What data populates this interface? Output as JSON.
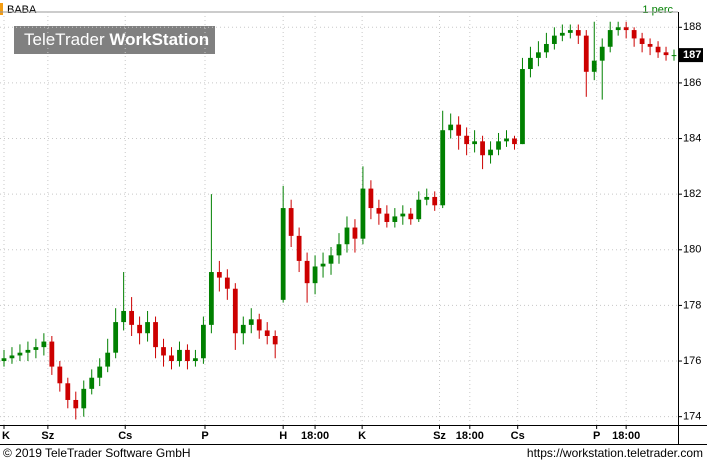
{
  "chart_data": {
    "type": "candlestick",
    "symbol": "BABA",
    "interval": "1 perc",
    "watermark": [
      "TeleTrader",
      "WorkStation"
    ],
    "footer_left": "© 2019 TeleTrader Software GmbH",
    "footer_right": "https://workstation.teletrader.com",
    "up_color": "#008000",
    "down_color": "#cc0000",
    "grid": true,
    "last_value": 187,
    "ylim": [
      173.7,
      188.55
    ],
    "yticks": [
      174,
      176,
      178,
      180,
      182,
      184,
      186,
      188
    ],
    "xlim": [
      -0.5,
      84.5
    ],
    "xticks": [
      {
        "value": 0,
        "label": "K"
      },
      {
        "value": 5.5,
        "label": "Sz"
      },
      {
        "value": 15.2,
        "label": "Cs"
      },
      {
        "value": 25.2,
        "label": "P"
      },
      {
        "value": 35,
        "label": "H"
      },
      {
        "value": 39,
        "label": "18:00"
      },
      {
        "value": 44.9,
        "label": "K"
      },
      {
        "value": 54.6,
        "label": "Sz"
      },
      {
        "value": 58.4,
        "label": "18:00"
      },
      {
        "value": 64.4,
        "label": "Cs"
      },
      {
        "value": 74.3,
        "label": "P"
      },
      {
        "value": 78,
        "label": "18:00"
      }
    ],
    "open": [
      176.0,
      176.1,
      176.2,
      176.3,
      176.4,
      176.5,
      176.7,
      175.8,
      175.2,
      174.6,
      174.3,
      175.0,
      175.4,
      175.8,
      176.3,
      177.4,
      177.8,
      177.3,
      177.0,
      177.4,
      176.5,
      176.2,
      176.0,
      176.4,
      176.0,
      176.1,
      177.3,
      179.2,
      179.0,
      178.6,
      177.0,
      177.3,
      177.5,
      177.1,
      176.9,
      178.2,
      181.5,
      180.5,
      179.6,
      178.8,
      179.4,
      179.5,
      179.8,
      180.2,
      180.8,
      180.4,
      182.2,
      181.5,
      181.3,
      181.0,
      181.2,
      181.3,
      181.1,
      181.8,
      181.9,
      181.6,
      184.3,
      184.5,
      184.1,
      183.8,
      183.9,
      183.4,
      183.6,
      183.9,
      184.0,
      183.8,
      186.5,
      186.9,
      187.1,
      187.4,
      187.7,
      187.8,
      187.9,
      187.7,
      186.4,
      186.8,
      187.3,
      187.9,
      188.0,
      187.9,
      187.6,
      187.4,
      187.3,
      187.1,
      187.0
    ],
    "high": [
      176.4,
      176.5,
      176.6,
      176.7,
      176.8,
      177.0,
      176.9,
      176.0,
      175.4,
      174.9,
      175.3,
      175.7,
      176.1,
      176.8,
      177.9,
      179.2,
      178.3,
      177.6,
      177.8,
      177.6,
      176.8,
      176.5,
      176.7,
      176.6,
      176.4,
      177.6,
      182.0,
      179.6,
      179.3,
      178.8,
      177.6,
      177.9,
      177.7,
      177.4,
      177.1,
      182.3,
      181.8,
      180.8,
      179.9,
      179.8,
      179.9,
      180.1,
      180.6,
      181.2,
      181.1,
      183.0,
      182.5,
      181.8,
      181.6,
      181.5,
      181.6,
      181.5,
      182.1,
      182.2,
      182.1,
      185.0,
      184.9,
      184.8,
      184.4,
      184.3,
      184.1,
      183.9,
      184.2,
      184.3,
      184.1,
      186.9,
      187.3,
      187.5,
      187.8,
      188.0,
      188.1,
      188.1,
      188.1,
      187.9,
      188.2,
      187.6,
      188.2,
      188.2,
      188.2,
      188.0,
      187.8,
      187.6,
      187.5,
      187.3,
      187.2
    ],
    "low": [
      175.8,
      175.9,
      176.0,
      176.0,
      176.1,
      176.2,
      175.5,
      174.9,
      174.3,
      173.9,
      174.0,
      174.8,
      175.1,
      175.6,
      176.1,
      177.1,
      176.9,
      176.6,
      176.7,
      176.1,
      175.8,
      175.7,
      175.8,
      175.7,
      175.8,
      175.9,
      177.0,
      178.5,
      178.2,
      176.4,
      176.6,
      177.0,
      176.8,
      176.6,
      176.1,
      178.1,
      180.1,
      179.2,
      178.1,
      178.4,
      179.0,
      179.1,
      179.5,
      179.9,
      179.9,
      180.2,
      181.1,
      180.9,
      180.8,
      180.8,
      180.9,
      180.9,
      181.0,
      181.6,
      181.4,
      181.5,
      184.0,
      183.6,
      183.4,
      183.5,
      182.9,
      183.1,
      183.4,
      183.7,
      183.6,
      183.8,
      186.2,
      186.6,
      186.9,
      187.2,
      187.5,
      187.6,
      187.4,
      185.5,
      186.1,
      185.4,
      187.1,
      187.7,
      187.6,
      187.3,
      187.1,
      187.0,
      186.9,
      186.8,
      186.8
    ],
    "close": [
      176.1,
      176.2,
      176.3,
      176.4,
      176.5,
      176.7,
      175.8,
      175.2,
      174.6,
      174.3,
      175.0,
      175.4,
      175.8,
      176.3,
      177.4,
      177.8,
      177.3,
      177.0,
      177.4,
      176.5,
      176.2,
      176.0,
      176.4,
      176.0,
      176.1,
      177.3,
      179.2,
      179.0,
      178.6,
      177.0,
      177.3,
      177.5,
      177.1,
      176.9,
      176.6,
      181.5,
      180.5,
      179.6,
      178.8,
      179.4,
      179.5,
      179.8,
      180.2,
      180.8,
      180.4,
      182.2,
      181.5,
      181.3,
      181.0,
      181.2,
      181.3,
      181.1,
      181.8,
      181.9,
      181.6,
      184.3,
      184.5,
      184.1,
      183.8,
      183.9,
      183.4,
      183.6,
      183.9,
      184.0,
      183.8,
      186.5,
      186.9,
      187.1,
      187.4,
      187.7,
      187.8,
      187.9,
      187.7,
      186.4,
      186.8,
      187.3,
      187.9,
      188.0,
      187.9,
      187.6,
      187.4,
      187.3,
      187.1,
      187.0,
      187.0
    ]
  }
}
